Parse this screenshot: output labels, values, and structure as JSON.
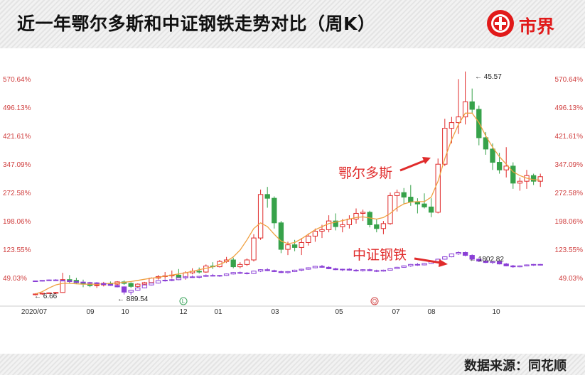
{
  "header": {
    "title": "近一年鄂尔多斯和中证钢铁走势对比（周K）",
    "brand": "市界",
    "brand_color": "#e11a1a"
  },
  "footer": {
    "source": "数据来源：同花顺"
  },
  "chart_data": {
    "type": "candlestick",
    "yaxis_unit": "%",
    "left_ticks": [
      "570.64%",
      "496.13%",
      "421.61%",
      "347.09%",
      "272.58%",
      "198.06%",
      "123.55%",
      "49.03%"
    ],
    "right_ticks": [
      "570.64%",
      "496.13%",
      "421.61%",
      "347.09%",
      "272.58%",
      "198.06%",
      "123.55%",
      "49.03%"
    ],
    "x_ticks": [
      "2020/07",
      "09",
      "10",
      "12",
      "01",
      "03",
      "05",
      "07",
      "08",
      "10"
    ],
    "event_markers": [
      "L",
      "Q"
    ],
    "up_color": "#e02b2b",
    "down_color": "#37a24a",
    "ma_color": "#f0a040",
    "steel_color": "#8a3fd6",
    "annotations": [
      {
        "name": "ordos-label",
        "text": "鄂尔多斯"
      },
      {
        "name": "steel-label",
        "text": "中证钢铁"
      },
      {
        "name": "ordos-high",
        "text": "45.57"
      },
      {
        "name": "ordos-low",
        "text": "6.66"
      },
      {
        "name": "steel-low",
        "text": "889.54"
      },
      {
        "name": "steel-high",
        "text": "1802.82"
      }
    ],
    "series": [
      {
        "name": "鄂尔多斯",
        "unit": "% change",
        "ohlc": [
          [
            0,
            4,
            -2,
            2
          ],
          [
            2,
            5,
            0,
            4
          ],
          [
            4,
            6,
            3,
            5
          ],
          [
            5,
            7,
            4,
            6
          ],
          [
            6,
            58,
            5,
            40
          ],
          [
            40,
            52,
            30,
            38
          ],
          [
            38,
            45,
            28,
            32
          ],
          [
            32,
            40,
            20,
            28
          ],
          [
            28,
            32,
            20,
            24
          ],
          [
            24,
            30,
            18,
            26
          ],
          [
            26,
            34,
            22,
            30
          ],
          [
            30,
            35,
            24,
            28
          ],
          [
            28,
            36,
            22,
            34
          ],
          [
            34,
            38,
            26,
            30
          ],
          [
            30,
            33,
            18,
            22
          ],
          [
            22,
            30,
            16,
            28
          ],
          [
            28,
            34,
            24,
            32
          ],
          [
            32,
            46,
            30,
            44
          ],
          [
            44,
            52,
            40,
            48
          ],
          [
            48,
            60,
            42,
            50
          ],
          [
            50,
            64,
            44,
            52
          ],
          [
            52,
            68,
            40,
            46
          ],
          [
            46,
            62,
            40,
            58
          ],
          [
            58,
            70,
            54,
            62
          ],
          [
            62,
            72,
            56,
            60
          ],
          [
            60,
            80,
            58,
            76
          ],
          [
            76,
            86,
            68,
            74
          ],
          [
            74,
            92,
            72,
            88
          ],
          [
            88,
            100,
            84,
            92
          ],
          [
            92,
            98,
            70,
            74
          ],
          [
            74,
            86,
            70,
            80
          ],
          [
            80,
            96,
            76,
            92
          ],
          [
            92,
            160,
            88,
            150
          ],
          [
            150,
            278,
            145,
            265
          ],
          [
            265,
            285,
            230,
            255
          ],
          [
            255,
            260,
            175,
            190
          ],
          [
            190,
            195,
            110,
            120
          ],
          [
            120,
            140,
            105,
            132
          ],
          [
            132,
            145,
            115,
            125
          ],
          [
            125,
            150,
            105,
            138
          ],
          [
            138,
            162,
            130,
            155
          ],
          [
            155,
            175,
            140,
            168
          ],
          [
            168,
            185,
            150,
            172
          ],
          [
            172,
            210,
            165,
            195
          ],
          [
            195,
            215,
            170,
            180
          ],
          [
            180,
            200,
            165,
            185
          ],
          [
            185,
            210,
            175,
            200
          ],
          [
            200,
            228,
            188,
            215
          ],
          [
            215,
            225,
            195,
            218
          ],
          [
            218,
            222,
            178,
            185
          ],
          [
            185,
            200,
            165,
            175
          ],
          [
            175,
            195,
            160,
            188
          ],
          [
            188,
            270,
            185,
            262
          ],
          [
            262,
            278,
            220,
            270
          ],
          [
            270,
            282,
            240,
            258
          ],
          [
            258,
            290,
            235,
            245
          ],
          [
            245,
            255,
            215,
            240
          ],
          [
            240,
            268,
            228,
            232
          ],
          [
            232,
            255,
            205,
            218
          ],
          [
            218,
            360,
            215,
            345
          ],
          [
            345,
            465,
            340,
            440
          ],
          [
            440,
            470,
            400,
            455
          ],
          [
            455,
            570,
            425,
            470
          ],
          [
            470,
            590,
            450,
            510
          ],
          [
            510,
            545,
            480,
            490
          ],
          [
            490,
            500,
            395,
            415
          ],
          [
            415,
            430,
            370,
            385
          ],
          [
            385,
            400,
            330,
            350
          ],
          [
            350,
            375,
            320,
            330
          ],
          [
            330,
            390,
            310,
            340
          ],
          [
            340,
            350,
            280,
            295
          ],
          [
            295,
            310,
            275,
            300
          ],
          [
            300,
            330,
            280,
            315
          ],
          [
            315,
            320,
            290,
            300
          ],
          [
            300,
            320,
            285,
            312
          ]
        ],
        "ma": [
          2,
          8,
          18,
          26,
          30,
          30,
          29,
          28,
          28,
          28,
          29,
          30,
          31,
          33,
          35,
          38,
          41,
          44,
          46,
          49,
          52,
          55,
          58,
          62,
          66,
          70,
          74,
          80,
          88,
          100,
          118,
          145,
          175,
          190,
          180,
          160,
          142,
          135,
          138,
          148,
          160,
          172,
          180,
          188,
          192,
          196,
          200,
          204,
          206,
          203,
          200,
          204,
          215,
          230,
          240,
          245,
          246,
          246,
          258,
          300,
          360,
          410,
          450,
          480,
          480,
          455,
          420,
          390,
          365,
          345,
          325,
          315,
          308,
          304,
          303
        ]
      },
      {
        "name": "中证钢铁",
        "unit": "index",
        "ohlc": [
          [
            1180,
            1190,
            1170,
            1185
          ],
          [
            1185,
            1200,
            1175,
            1195
          ],
          [
            1195,
            1215,
            1185,
            1205
          ],
          [
            1205,
            1220,
            1190,
            1198
          ],
          [
            1198,
            1210,
            1180,
            1190
          ],
          [
            1190,
            1200,
            1160,
            1170
          ],
          [
            1170,
            1185,
            1150,
            1160
          ],
          [
            1160,
            1175,
            1140,
            1150
          ],
          [
            1150,
            1165,
            1135,
            1145
          ],
          [
            1145,
            1160,
            1120,
            1130
          ],
          [
            1130,
            1140,
            1100,
            1110
          ],
          [
            1110,
            1120,
            1080,
            1090
          ],
          [
            1090,
            1100,
            1050,
            1060
          ],
          [
            1060,
            1070,
            900,
            950
          ],
          [
            950,
            1000,
            890,
            990
          ],
          [
            990,
            1050,
            980,
            1040
          ],
          [
            1040,
            1110,
            1030,
            1100
          ],
          [
            1100,
            1150,
            1090,
            1140
          ],
          [
            1140,
            1200,
            1130,
            1190
          ],
          [
            1190,
            1220,
            1170,
            1200
          ],
          [
            1200,
            1230,
            1180,
            1210
          ],
          [
            1210,
            1260,
            1200,
            1250
          ],
          [
            1250,
            1290,
            1230,
            1270
          ],
          [
            1270,
            1300,
            1250,
            1260
          ],
          [
            1260,
            1290,
            1240,
            1280
          ],
          [
            1280,
            1320,
            1270,
            1300
          ],
          [
            1300,
            1330,
            1280,
            1290
          ],
          [
            1290,
            1310,
            1270,
            1300
          ],
          [
            1300,
            1340,
            1290,
            1330
          ],
          [
            1330,
            1370,
            1320,
            1360
          ],
          [
            1360,
            1380,
            1330,
            1350
          ],
          [
            1350,
            1370,
            1320,
            1340
          ],
          [
            1340,
            1400,
            1330,
            1390
          ],
          [
            1390,
            1430,
            1370,
            1420
          ],
          [
            1420,
            1450,
            1390,
            1400
          ],
          [
            1400,
            1420,
            1370,
            1380
          ],
          [
            1380,
            1400,
            1350,
            1360
          ],
          [
            1360,
            1390,
            1340,
            1380
          ],
          [
            1380,
            1420,
            1370,
            1410
          ],
          [
            1410,
            1440,
            1390,
            1430
          ],
          [
            1430,
            1470,
            1420,
            1460
          ],
          [
            1460,
            1500,
            1450,
            1490
          ],
          [
            1490,
            1520,
            1460,
            1470
          ],
          [
            1470,
            1490,
            1430,
            1440
          ],
          [
            1440,
            1460,
            1410,
            1420
          ],
          [
            1420,
            1440,
            1390,
            1430
          ],
          [
            1430,
            1450,
            1400,
            1410
          ],
          [
            1410,
            1430,
            1380,
            1400
          ],
          [
            1400,
            1430,
            1380,
            1420
          ],
          [
            1420,
            1440,
            1390,
            1400
          ],
          [
            1400,
            1420,
            1370,
            1390
          ],
          [
            1390,
            1420,
            1380,
            1410
          ],
          [
            1410,
            1450,
            1400,
            1440
          ],
          [
            1440,
            1480,
            1430,
            1470
          ],
          [
            1470,
            1510,
            1460,
            1500
          ],
          [
            1500,
            1540,
            1480,
            1530
          ],
          [
            1530,
            1560,
            1500,
            1520
          ],
          [
            1520,
            1560,
            1510,
            1550
          ],
          [
            1550,
            1600,
            1540,
            1590
          ],
          [
            1590,
            1650,
            1580,
            1640
          ],
          [
            1640,
            1700,
            1630,
            1690
          ],
          [
            1690,
            1760,
            1680,
            1750
          ],
          [
            1750,
            1803,
            1730,
            1780
          ],
          [
            1780,
            1800,
            1700,
            1720
          ],
          [
            1720,
            1740,
            1620,
            1640
          ],
          [
            1640,
            1660,
            1580,
            1600
          ],
          [
            1600,
            1620,
            1560,
            1570
          ],
          [
            1570,
            1600,
            1540,
            1590
          ],
          [
            1590,
            1610,
            1530,
            1540
          ],
          [
            1540,
            1560,
            1490,
            1500
          ],
          [
            1500,
            1520,
            1460,
            1480
          ],
          [
            1480,
            1510,
            1470,
            1500
          ],
          [
            1500,
            1530,
            1490,
            1520
          ],
          [
            1520,
            1540,
            1500,
            1530
          ],
          [
            1530,
            1540,
            1510,
            1520
          ]
        ]
      }
    ]
  }
}
